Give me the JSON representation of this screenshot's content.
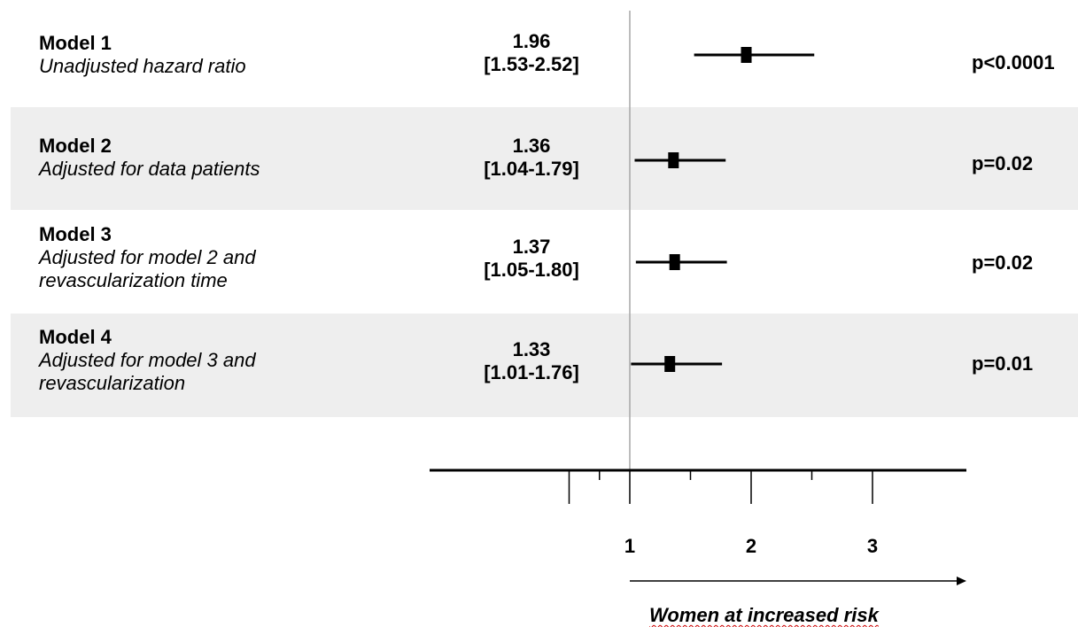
{
  "colors": {
    "band": "#eeeeee",
    "ink": "#000000",
    "refline": "#a6a6a6"
  },
  "rows": [
    {
      "model": "Model 1",
      "desc": [
        "Unadjusted hazard ratio"
      ],
      "hr": "1.96",
      "ci": "[1.53-2.52]",
      "p": "p<0.0001"
    },
    {
      "model": "Model 2",
      "desc": [
        "Adjusted for data patients"
      ],
      "hr": "1.36",
      "ci": "[1.04-1.79]",
      "p": "p=0.02"
    },
    {
      "model": "Model 3",
      "desc": [
        "Adjusted for model 2 and",
        "revascularization time"
      ],
      "hr": "1.37",
      "ci": "[1.05-1.80]",
      "p": "p=0.02"
    },
    {
      "model": "Model 4",
      "desc": [
        "Adjusted for model 3 and",
        "revascularization"
      ],
      "hr": "1.33",
      "ci": "[1.01-1.76]",
      "p": "p=0.01"
    }
  ],
  "axis_caption": "Women at increased risk",
  "chart_data": {
    "type": "forest",
    "reference_value": 1,
    "xlim": [
      0,
      3.8
    ],
    "ticks_major": [
      0.5,
      1,
      2,
      3
    ],
    "ticks_minor": [
      0.75,
      1.5,
      2.5
    ],
    "tick_labels": [
      {
        "value": 1,
        "label": "1"
      },
      {
        "value": 2,
        "label": "2"
      },
      {
        "value": 3,
        "label": "3"
      }
    ],
    "points": [
      {
        "name": "Model 1",
        "estimate": 1.96,
        "lower": 1.53,
        "upper": 2.52
      },
      {
        "name": "Model 2",
        "estimate": 1.36,
        "lower": 1.04,
        "upper": 1.79
      },
      {
        "name": "Model 3",
        "estimate": 1.37,
        "lower": 1.05,
        "upper": 1.8
      },
      {
        "name": "Model 4",
        "estimate": 1.33,
        "lower": 1.01,
        "upper": 1.76
      }
    ]
  }
}
